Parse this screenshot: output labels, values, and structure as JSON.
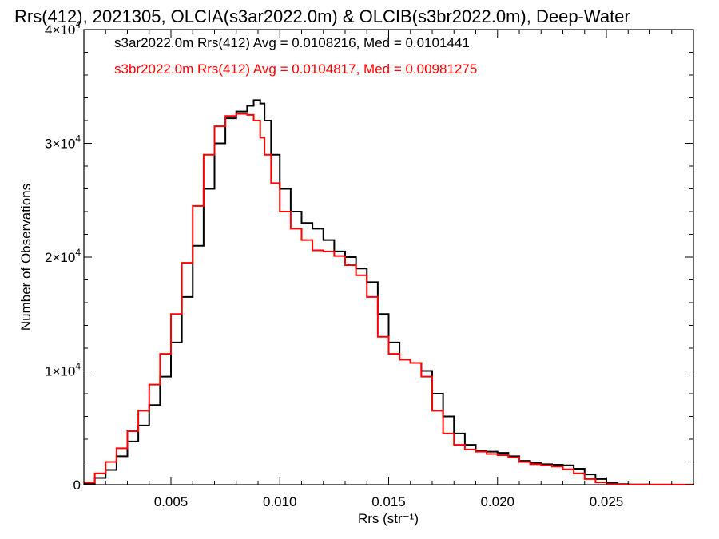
{
  "chart_data": {
    "type": "line",
    "title": "Rrs(412), 2021305, OLCIA(s3ar2022.0m) & OLCIB(s3br2022.0m), Deep-Water",
    "xlabel": "Rrs (str⁻¹)",
    "ylabel": "Number of Observations",
    "xlim": [
      0.001,
      0.029
    ],
    "ylim": [
      0,
      40000
    ],
    "x_ticks": [
      0.005,
      0.01,
      0.015,
      0.02,
      0.025
    ],
    "x_tick_labels": [
      "0.005",
      "0.010",
      "0.015",
      "0.020",
      "0.025"
    ],
    "y_ticks": [
      0,
      10000,
      20000,
      30000,
      40000
    ],
    "y_tick_labels": [
      {
        "mantissa": "0",
        "exp": ""
      },
      {
        "mantissa": "1×10",
        "exp": "4"
      },
      {
        "mantissa": "2×10",
        "exp": "4"
      },
      {
        "mantissa": "3×10",
        "exp": "4"
      },
      {
        "mantissa": "4×10",
        "exp": "4"
      }
    ],
    "legend_position": "top-left",
    "series": [
      {
        "name": "s3ar2022.0m Rrs(412) Avg = 0.0108216, Med = 0.0101441",
        "color": "#000000",
        "x": [
          0.001,
          0.0015,
          0.002,
          0.0025,
          0.003,
          0.0035,
          0.004,
          0.0045,
          0.005,
          0.0055,
          0.006,
          0.0065,
          0.007,
          0.0075,
          0.008,
          0.0085,
          0.0088,
          0.0091,
          0.0093,
          0.0096,
          0.01,
          0.0105,
          0.011,
          0.0115,
          0.012,
          0.0125,
          0.013,
          0.0135,
          0.014,
          0.0145,
          0.015,
          0.0155,
          0.016,
          0.0165,
          0.017,
          0.0175,
          0.018,
          0.0185,
          0.019,
          0.0195,
          0.02,
          0.0205,
          0.021,
          0.0215,
          0.022,
          0.0225,
          0.023,
          0.0235,
          0.024,
          0.0245,
          0.025,
          0.0255,
          0.026,
          0.027,
          0.028,
          0.029
        ],
        "y": [
          100,
          600,
          1300,
          2500,
          3800,
          5200,
          7000,
          9500,
          12500,
          16500,
          21000,
          26000,
          30000,
          32200,
          32800,
          33300,
          33800,
          33500,
          32000,
          29000,
          26000,
          24000,
          23000,
          22500,
          21500,
          20500,
          20000,
          19000,
          17800,
          15000,
          12500,
          11000,
          10700,
          10000,
          8000,
          6000,
          4500,
          3500,
          3000,
          2900,
          2800,
          2500,
          2100,
          1900,
          1800,
          1750,
          1700,
          1400,
          900,
          500,
          150,
          50,
          20,
          10,
          5,
          0
        ]
      },
      {
        "name": "s3br2022.0m Rrs(412) Avg = 0.0104817, Med = 0.00981275",
        "color": "#ff0000",
        "x": [
          0.001,
          0.0015,
          0.002,
          0.0025,
          0.003,
          0.0035,
          0.004,
          0.0045,
          0.005,
          0.0055,
          0.006,
          0.0065,
          0.007,
          0.0075,
          0.008,
          0.0085,
          0.0088,
          0.0091,
          0.0093,
          0.0096,
          0.01,
          0.0105,
          0.011,
          0.0115,
          0.012,
          0.0125,
          0.013,
          0.0135,
          0.014,
          0.0145,
          0.015,
          0.0155,
          0.016,
          0.0165,
          0.017,
          0.0175,
          0.018,
          0.0185,
          0.019,
          0.0195,
          0.02,
          0.0205,
          0.021,
          0.0215,
          0.022,
          0.0225,
          0.023,
          0.0235,
          0.024,
          0.0245,
          0.025,
          0.0255,
          0.026,
          0.027,
          0.028,
          0.029
        ],
        "y": [
          200,
          1000,
          2000,
          3200,
          4700,
          6500,
          8800,
          11500,
          15000,
          19500,
          24500,
          29000,
          31500,
          32400,
          32600,
          32500,
          32000,
          30500,
          29000,
          26500,
          24000,
          22500,
          21500,
          20600,
          20500,
          20100,
          19300,
          18400,
          16500,
          13000,
          11500,
          11000,
          10700,
          9500,
          6500,
          4500,
          3500,
          3100,
          2900,
          2700,
          2600,
          2400,
          2000,
          1800,
          1700,
          1600,
          1350,
          1000,
          500,
          200,
          50,
          20,
          10,
          5,
          0,
          0
        ]
      }
    ]
  }
}
